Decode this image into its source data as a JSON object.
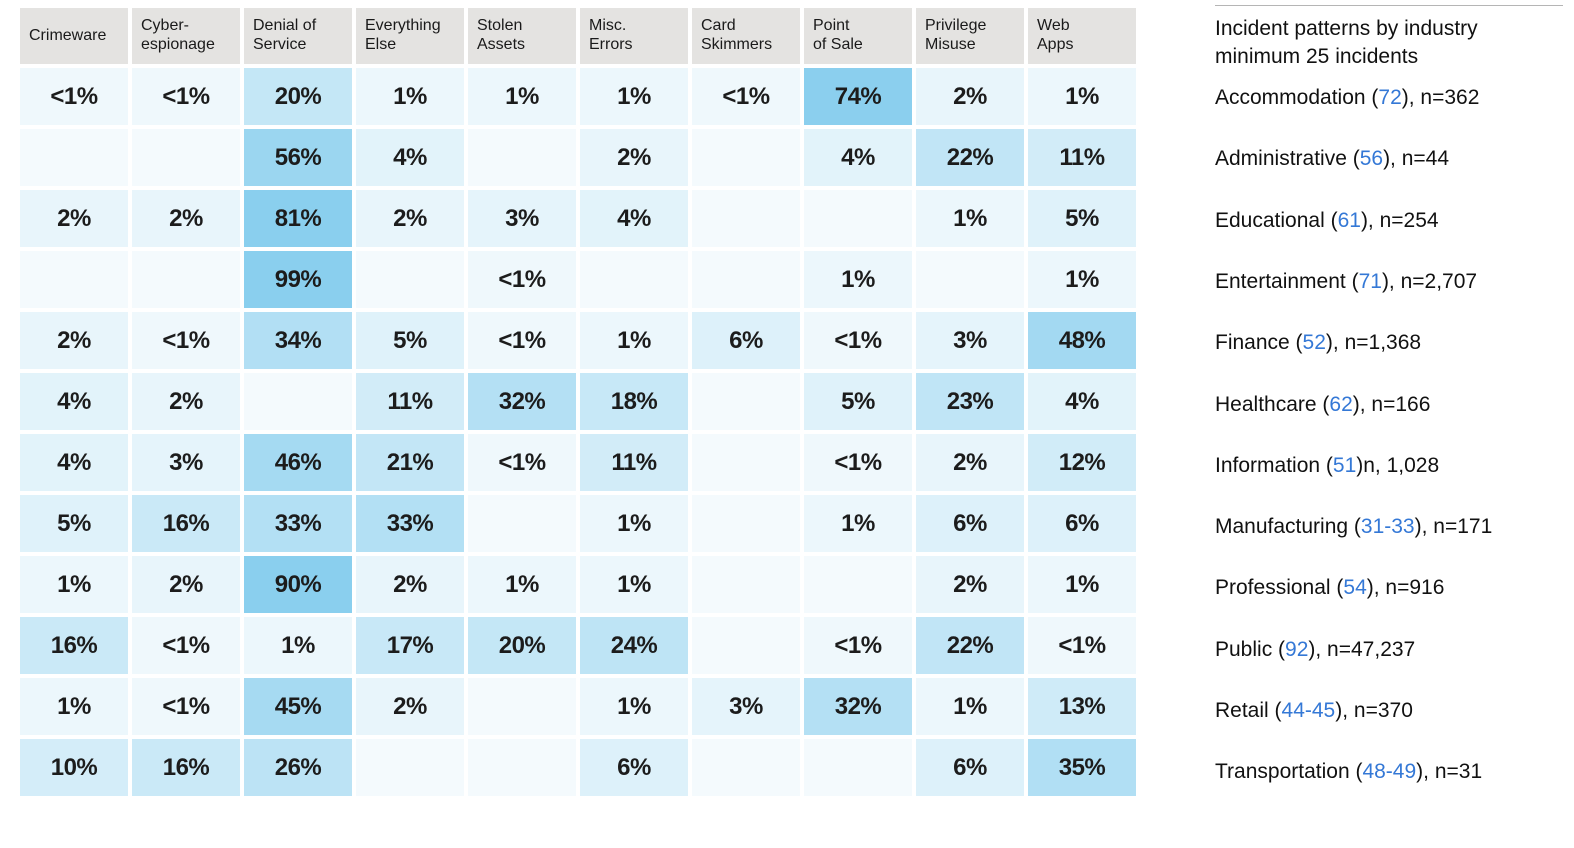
{
  "legend_panel": {
    "title_line1": "Incident patterns by industry",
    "title_line2": "minimum 25 incidents"
  },
  "colors": {
    "cell_min": "#f4fafd",
    "cell_max": "#8acfee",
    "header_bg": "#e4e3e1",
    "code_blue": "#3478d6",
    "divider_gray": "#b5b5b5"
  },
  "chart_data": {
    "type": "heatmap",
    "title": "Incident patterns by industry minimum 25 incidents",
    "columns": [
      [
        "Crimeware"
      ],
      [
        "Cyber-",
        "espionage"
      ],
      [
        "Denial of",
        "Service"
      ],
      [
        "Everything",
        "Else"
      ],
      [
        "Stolen",
        "Assets"
      ],
      [
        "Misc.",
        "Errors"
      ],
      [
        "Card",
        "Skimmers"
      ],
      [
        "Point",
        "of Sale"
      ],
      [
        "Privilege",
        "Misuse"
      ],
      [
        "Web",
        "Apps"
      ]
    ],
    "rows": [
      {
        "name": "Accommodation",
        "code": "72",
        "tail": "), n=362",
        "values": [
          "<1%",
          "<1%",
          "20%",
          "1%",
          "1%",
          "1%",
          "<1%",
          "74%",
          "2%",
          "1%"
        ]
      },
      {
        "name": "Administrative",
        "code": "56",
        "tail": "), n=44",
        "values": [
          "",
          "",
          "56%",
          "4%",
          "",
          "2%",
          "",
          "4%",
          "22%",
          "11%"
        ]
      },
      {
        "name": "Educational",
        "code": "61",
        "tail": "), n=254",
        "values": [
          "2%",
          "2%",
          "81%",
          "2%",
          "3%",
          "4%",
          "",
          "",
          "1%",
          "5%"
        ]
      },
      {
        "name": "Entertainment",
        "code": "71",
        "tail": "), n=2,707",
        "values": [
          "",
          "",
          "99%",
          "",
          "<1%",
          "",
          "",
          "1%",
          "",
          "1%"
        ]
      },
      {
        "name": "Finance",
        "code": "52",
        "tail": "), n=1,368",
        "values": [
          "2%",
          "<1%",
          "34%",
          "5%",
          "<1%",
          "1%",
          "6%",
          "<1%",
          "3%",
          "48%"
        ]
      },
      {
        "name": "Healthcare",
        "code": "62",
        "tail": "), n=166",
        "values": [
          "4%",
          "2%",
          "",
          "11%",
          "32%",
          "18%",
          "",
          "5%",
          "23%",
          "4%"
        ]
      },
      {
        "name": "Information",
        "code": "51",
        "tail": ")n, 1,028",
        "values": [
          "4%",
          "3%",
          "46%",
          "21%",
          "<1%",
          "11%",
          "",
          "<1%",
          "2%",
          "12%"
        ]
      },
      {
        "name": "Manufacturing",
        "code": "31-33",
        "tail": "), n=171",
        "values": [
          "5%",
          "16%",
          "33%",
          "33%",
          "",
          "1%",
          "",
          "1%",
          "6%",
          "6%"
        ]
      },
      {
        "name": "Professional",
        "code": "54",
        "tail": "), n=916",
        "values": [
          "1%",
          "2%",
          "90%",
          "2%",
          "1%",
          "1%",
          "",
          "",
          "2%",
          "1%"
        ]
      },
      {
        "name": "Public",
        "code": "92",
        "tail": "), n=47,237",
        "values": [
          "16%",
          "<1%",
          "1%",
          "17%",
          "20%",
          "24%",
          "",
          "<1%",
          "22%",
          "<1%"
        ]
      },
      {
        "name": "Retail",
        "code": "44-45",
        "tail": "), n=370",
        "values": [
          "1%",
          "<1%",
          "45%",
          "2%",
          "",
          "1%",
          "3%",
          "32%",
          "1%",
          "13%"
        ]
      },
      {
        "name": "Transportation",
        "code": "48-49",
        "tail": "), n=31",
        "values": [
          "10%",
          "16%",
          "26%",
          "",
          "",
          "6%",
          "",
          "",
          "6%",
          "35%"
        ]
      }
    ],
    "value_scale_note": "cell fill interpolates from cell_min at 0% to cell_max at >=75%"
  }
}
